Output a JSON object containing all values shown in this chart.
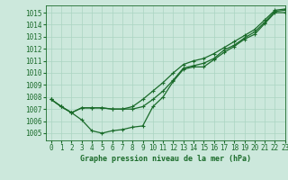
{
  "title": "Graphe pression niveau de la mer (hPa)",
  "background_color": "#cce8dc",
  "grid_color": "#aad4c2",
  "line_color": "#1a6b2a",
  "xlim": [
    -0.5,
    23
  ],
  "ylim": [
    1004.4,
    1015.6
  ],
  "yticks": [
    1005,
    1006,
    1007,
    1008,
    1009,
    1010,
    1011,
    1012,
    1013,
    1014,
    1015
  ],
  "xticks": [
    0,
    1,
    2,
    3,
    4,
    5,
    6,
    7,
    8,
    9,
    10,
    11,
    12,
    13,
    14,
    15,
    16,
    17,
    18,
    19,
    20,
    21,
    22,
    23
  ],
  "series": [
    [
      1007.8,
      1007.2,
      1006.7,
      1006.1,
      1005.2,
      1005.0,
      1005.2,
      1005.3,
      1005.5,
      1005.6,
      1007.2,
      1008.0,
      1009.3,
      1010.3,
      1010.5,
      1010.5,
      1011.1,
      1011.7,
      1012.2,
      1012.8,
      1013.2,
      1014.1,
      1015.0,
      1015.0
    ],
    [
      1007.8,
      1007.2,
      1006.7,
      1007.1,
      1007.1,
      1007.1,
      1007.0,
      1007.0,
      1007.0,
      1007.2,
      1007.8,
      1008.5,
      1009.4,
      1010.4,
      1010.6,
      1010.8,
      1011.2,
      1011.9,
      1012.3,
      1012.9,
      1013.4,
      1014.2,
      1015.1,
      1015.2
    ],
    [
      1007.8,
      1007.2,
      1006.7,
      1007.1,
      1007.1,
      1007.1,
      1007.0,
      1007.0,
      1007.2,
      1007.8,
      1008.5,
      1009.2,
      1010.0,
      1010.7,
      1011.0,
      1011.2,
      1011.6,
      1012.1,
      1012.6,
      1013.1,
      1013.6,
      1014.4,
      1015.2,
      1015.3
    ]
  ],
  "title_fontsize": 6,
  "tick_fontsize": 5.5
}
